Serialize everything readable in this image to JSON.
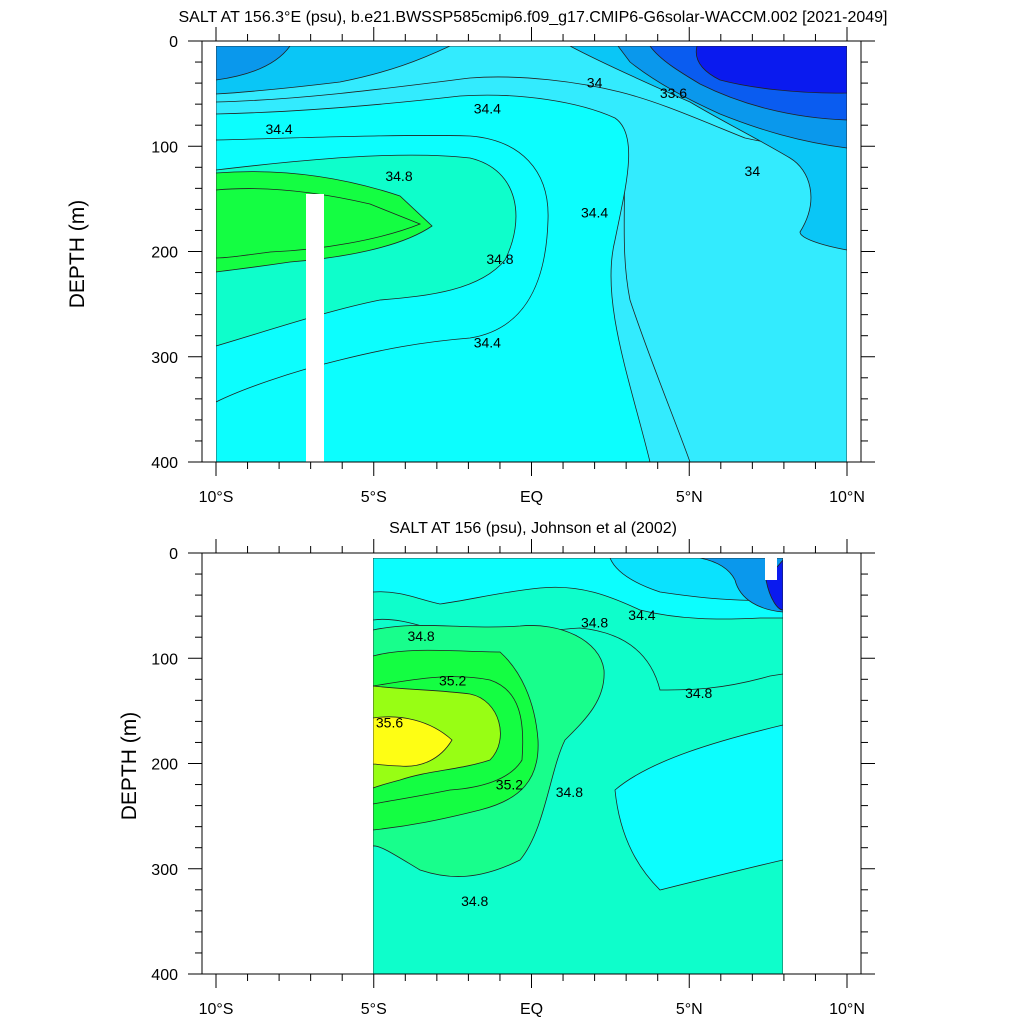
{
  "chart_data": [
    {
      "type": "heatmap",
      "subtype": "filled-contour",
      "title": "SALT AT 156.3°E (psu), b.e21.BWSSP585cmip6.f09_g17.CMIP6-G6solar-WACCM.002 [2021-2049]",
      "ylabel": "DEPTH (m)",
      "xlim": [
        -10,
        10
      ],
      "ylim": [
        400,
        0
      ],
      "x_ticks": [
        -10,
        -5,
        0,
        5,
        10
      ],
      "x_tick_labels": [
        "10°S",
        "5°S",
        "EQ",
        "5°N",
        "10°N"
      ],
      "y_ticks": [
        0,
        100,
        200,
        300,
        400
      ],
      "y_tick_labels": [
        "0",
        "100",
        "200",
        "300",
        "400"
      ],
      "contour_labels": [
        {
          "text": "34",
          "x": 2.0,
          "y": 35
        },
        {
          "text": "33.6",
          "x": 4.5,
          "y": 45
        },
        {
          "text": "34.4",
          "x": -8.0,
          "y": 80
        },
        {
          "text": "34.4",
          "x": -1.4,
          "y": 60
        },
        {
          "text": "34.8",
          "x": -4.2,
          "y": 125
        },
        {
          "text": "34.4",
          "x": 2.0,
          "y": 160
        },
        {
          "text": "34",
          "x": 7.0,
          "y": 120
        },
        {
          "text": "34.8",
          "x": -1.0,
          "y": 205
        },
        {
          "text": "34.4",
          "x": -1.4,
          "y": 285
        }
      ]
    },
    {
      "type": "heatmap",
      "subtype": "filled-contour",
      "title": "SALT AT 156 (psu), Johnson et al (2002)",
      "ylabel": "DEPTH (m)",
      "xlim": [
        -10,
        10
      ],
      "ylim": [
        400,
        0
      ],
      "x_ticks": [
        -10,
        -5,
        0,
        5,
        10
      ],
      "x_tick_labels": [
        "10°S",
        "5°S",
        "EQ",
        "5°N",
        "10°N"
      ],
      "y_ticks": [
        0,
        100,
        200,
        300,
        400
      ],
      "y_tick_labels": [
        "0",
        "100",
        "200",
        "300",
        "400"
      ],
      "contour_labels": [
        {
          "text": "34.8",
          "x": -3.5,
          "y": 75
        },
        {
          "text": "34.8",
          "x": 2.0,
          "y": 62
        },
        {
          "text": "34.4",
          "x": 3.5,
          "y": 55
        },
        {
          "text": "35.2",
          "x": -2.5,
          "y": 118
        },
        {
          "text": "35.6",
          "x": -4.5,
          "y": 158
        },
        {
          "text": "34.8",
          "x": 5.3,
          "y": 130
        },
        {
          "text": "35.2",
          "x": -0.7,
          "y": 218
        },
        {
          "text": "34.8",
          "x": 1.2,
          "y": 225
        },
        {
          "text": "34.8",
          "x": -1.8,
          "y": 330
        }
      ]
    }
  ],
  "colors": {
    "s33_6": "#0a1aef",
    "s33_8": "#0a5cf0",
    "s34_0": "#0a98ec",
    "s34_2": "#0ac6f6",
    "s34_4": "#0ae2fe",
    "s34_6": "#33ebfe",
    "s34_8": "#0cfefe",
    "s35_0": "#0efecb",
    "s35_2": "#18fe8c",
    "s35_4": "#14fe42",
    "s35_6": "#98fe14",
    "s35_8": "#fefe14",
    "missing": "#ffffff"
  }
}
